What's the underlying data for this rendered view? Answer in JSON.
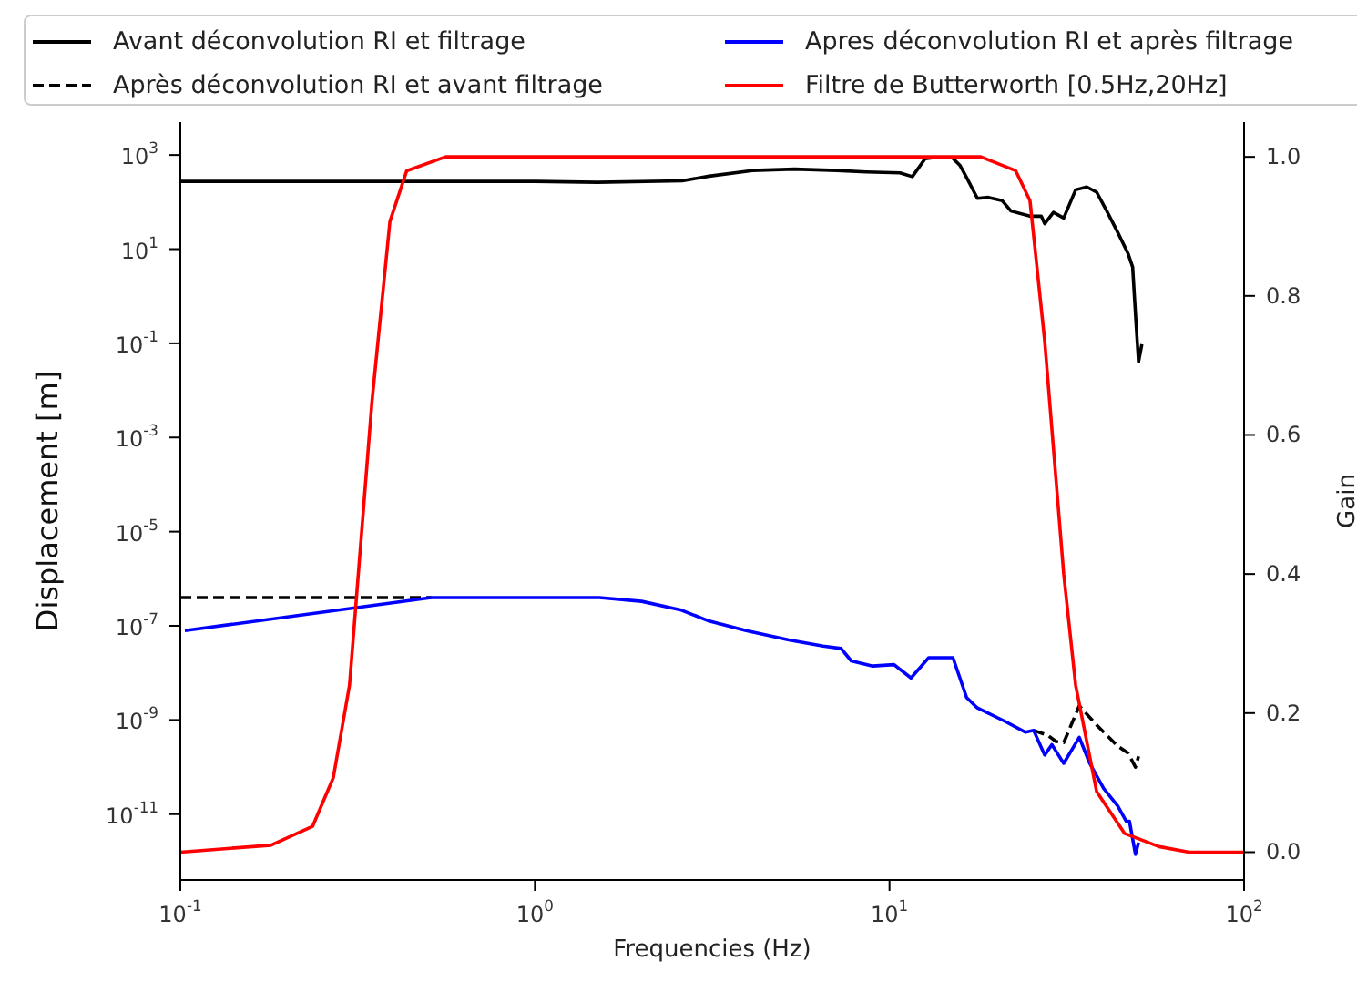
{
  "chart_data": {
    "type": "line",
    "xlabel": "Frequencies (Hz)",
    "ylabel": "Displacement [m]",
    "y2label": "Gain",
    "log": "xy",
    "grid": false,
    "legend": "top",
    "marker": "none",
    "xlim": [
      0.1,
      100
    ],
    "xticks": [
      {
        "value": 0.1,
        "label": "10$^{-1}$"
      },
      {
        "value": 1,
        "label": "10$^{0}$"
      },
      {
        "value": 10,
        "label": "10$^{1}$"
      },
      {
        "value": 100,
        "label": "10$^{2}$"
      }
    ],
    "ylim": [
      4e-13,
      5000
    ],
    "yticks": [
      {
        "value": 1000,
        "label": "10$^{3}$"
      },
      {
        "value": 10,
        "label": "10$^{1}$"
      },
      {
        "value": 0.1,
        "label": "10$^{-1}$"
      },
      {
        "value": 0.001,
        "label": "10$^{-3}$"
      },
      {
        "value": 1e-05,
        "label": "10$^{-5}$"
      },
      {
        "value": 1e-07,
        "label": "10$^{-7}$"
      },
      {
        "value": 1e-09,
        "label": "10$^{-9}$"
      },
      {
        "value": 1e-11,
        "label": "10$^{-11}$"
      }
    ],
    "y2lim": [
      -0.04,
      1.05
    ],
    "y2ticks": [
      {
        "value": 0,
        "label": "0.0"
      },
      {
        "value": 0.2,
        "label": "0.2"
      },
      {
        "value": 0.4,
        "label": "0.4"
      },
      {
        "value": 0.6,
        "label": "0.6"
      },
      {
        "value": 0.8,
        "label": "0.8"
      },
      {
        "value": 1,
        "label": "1.0"
      }
    ],
    "series": [
      {
        "name": "Avant déconvolution RI et filtrage",
        "color": "#000000",
        "line_style": "solid",
        "x": [
          0.1,
          1.0,
          1.5,
          2.6,
          3.1,
          4.1,
          5.4,
          7.1,
          8.6,
          10.7,
          11.6,
          12.6,
          13.5,
          15,
          15.8,
          16.5,
          17.7,
          19,
          20.8,
          22,
          24.9,
          26.8,
          27.4,
          29,
          31,
          33.5,
          36,
          38.4,
          41,
          44,
          47,
          48.5,
          49.5,
          50.4,
          51.5
        ],
        "values": [
          275,
          275,
          263,
          282,
          355,
          468,
          501,
          468,
          437,
          417,
          347,
          832,
          891,
          891,
          603,
          331,
          120,
          126,
          107,
          64.6,
          50.1,
          50.1,
          34.7,
          60.3,
          45.7,
          182,
          209,
          162,
          64.6,
          22.9,
          8.3,
          4.17,
          0.331,
          0.0407,
          0.0955
        ]
      },
      {
        "name": "Après déconvolution RI et avant filtrage",
        "color": "#000000",
        "line_style": "dashed",
        "x": [
          0.1,
          0.51,
          1.52,
          25.5,
          28,
          29.5,
          31,
          34.3,
          38.4,
          44,
          47,
          49.4,
          50.4
        ],
        "values": [
          3.98e-07,
          3.98e-07,
          null,
          6e-10,
          4.7e-10,
          3.5e-10,
          3.3e-10,
          2e-09,
          7.8e-10,
          2.8e-10,
          2e-10,
          1e-10,
          1.7e-10
        ]
      },
      {
        "name": "Apres déconvolution RI et après filtrage",
        "color": "#0000ff",
        "line_style": "solid",
        "x": [
          0.103,
          0.51,
          1.52,
          2.0,
          2.57,
          3.1,
          3.94,
          5.2,
          6.5,
          7.3,
          7.8,
          8.97,
          10.3,
          11.5,
          12.9,
          15.1,
          16.5,
          17.7,
          21.2,
          24.2,
          25.5,
          27.4,
          28.7,
          31,
          34.3,
          36.7,
          40.2,
          44,
          46.5,
          47.5,
          49.4,
          50.4
        ],
        "values": [
          7.9e-08,
          3.98e-07,
          3.98e-07,
          3.31e-07,
          2.19e-07,
          1.26e-07,
          7.9e-08,
          5e-08,
          3.7e-08,
          3.3e-08,
          1.8e-08,
          1.4e-08,
          1.5e-08,
          7.8e-09,
          2.1e-08,
          2.1e-08,
          3e-09,
          1.8e-09,
          9.3e-10,
          5.5e-10,
          6e-10,
          1.8e-10,
          3e-10,
          1.2e-10,
          4.3e-10,
          1.2e-10,
          3.5e-11,
          1.5e-11,
          7.1e-12,
          7.1e-12,
          1.4e-12,
          2.5e-12
        ]
      },
      {
        "name": "Filtre de Butterworth [0.5Hz,20Hz]",
        "color": "#ff0000",
        "line_style": "solid",
        "axis": "y2",
        "x": [
          0.1,
          0.18,
          0.236,
          0.27,
          0.3,
          0.347,
          0.39,
          0.435,
          0.56,
          18.1,
          22.7,
          24.9,
          27.4,
          31,
          33.5,
          38.4,
          46,
          57.6,
          70,
          100
        ],
        "values": [
          0,
          0.01,
          0.037,
          0.107,
          0.24,
          0.647,
          0.907,
          0.98,
          1.0,
          1.0,
          0.98,
          0.937,
          0.735,
          0.4,
          0.24,
          0.087,
          0.027,
          0.008,
          0,
          0
        ]
      }
    ]
  }
}
